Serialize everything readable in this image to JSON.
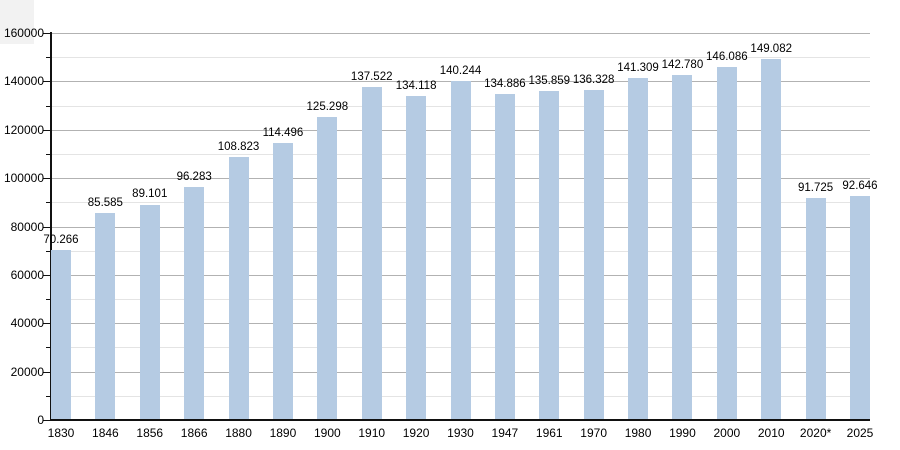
{
  "chart_data": {
    "type": "bar",
    "title": "",
    "xlabel": "",
    "ylabel": "",
    "categories": [
      "1830",
      "1846",
      "1856",
      "1866",
      "1880",
      "1890",
      "1900",
      "1910",
      "1920",
      "1930",
      "1947",
      "1961",
      "1970",
      "1980",
      "1990",
      "2000",
      "2010",
      "2020*",
      "2025"
    ],
    "values": [
      70266,
      85585,
      89101,
      96283,
      108823,
      114496,
      125298,
      137522,
      134118,
      140244,
      134886,
      135859,
      136328,
      141309,
      142780,
      146086,
      149082,
      91725,
      92646
    ],
    "value_labels": [
      "70.266",
      "85.585",
      "89.101",
      "96.283",
      "108.823",
      "114.496",
      "125.298",
      "137.522",
      "134.118",
      "140.244",
      "134.886",
      "135.859",
      "136.328",
      "141.309",
      "142.780",
      "146.086",
      "149.082",
      "91.725",
      "92.646"
    ],
    "ylim": [
      0,
      160000
    ],
    "y_major_step": 20000,
    "y_minor_step": 10000,
    "y_tick_labels": [
      "0",
      "20000",
      "40000",
      "60000",
      "80000",
      "100000",
      "120000",
      "140000",
      "160000"
    ],
    "grid": "horizontal major and minor gridlines",
    "legend": "none",
    "colors": {
      "bar_fill": "#b5cbe3",
      "grid_major": "#b2b2b2",
      "grid_minor": "#e4e4e4",
      "axis": "#111111",
      "text": "#000000",
      "background": "#ffffff"
    }
  }
}
